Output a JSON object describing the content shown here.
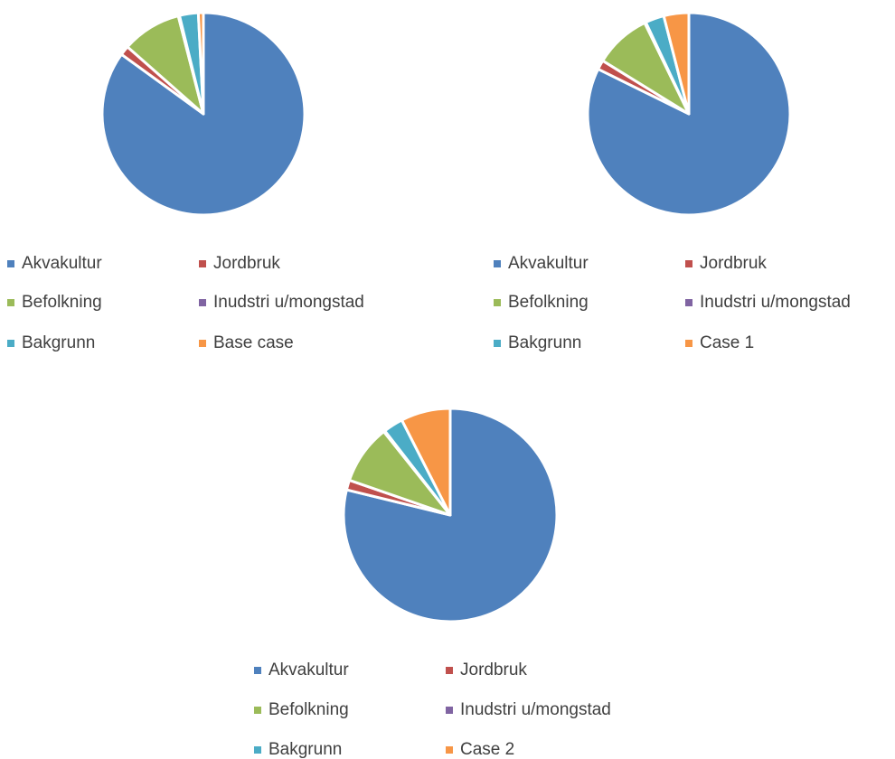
{
  "chart_data": [
    {
      "type": "pie",
      "categories": [
        "Akvakultur",
        "Jordbruk",
        "Befolkning",
        "Inudstri u/mongstad",
        "Bakgrunn",
        "Base case"
      ],
      "values": [
        85,
        1.5,
        9.5,
        0.2,
        3,
        0.8
      ],
      "colors": [
        "#4f81bd",
        "#c0504d",
        "#9bbb59",
        "#8064a2",
        "#4bacc6",
        "#f79646"
      ],
      "legend": "bottom"
    },
    {
      "type": "pie",
      "categories": [
        "Akvakultur",
        "Jordbruk",
        "Befolkning",
        "Inudstri u/mongstad",
        "Bakgrunn",
        "Case 1"
      ],
      "values": [
        82.3,
        1.5,
        9,
        0.2,
        3,
        4
      ],
      "colors": [
        "#4f81bd",
        "#c0504d",
        "#9bbb59",
        "#8064a2",
        "#4bacc6",
        "#f79646"
      ],
      "legend": "bottom"
    },
    {
      "type": "pie",
      "categories": [
        "Akvakultur",
        "Jordbruk",
        "Befolkning",
        "Inudstri u/mongstad",
        "Bakgrunn",
        "Case 2"
      ],
      "values": [
        78.8,
        1.5,
        9,
        0.2,
        3,
        7.5
      ],
      "colors": [
        "#4f81bd",
        "#c0504d",
        "#9bbb59",
        "#8064a2",
        "#4bacc6",
        "#f79646"
      ],
      "legend": "bottom"
    }
  ]
}
